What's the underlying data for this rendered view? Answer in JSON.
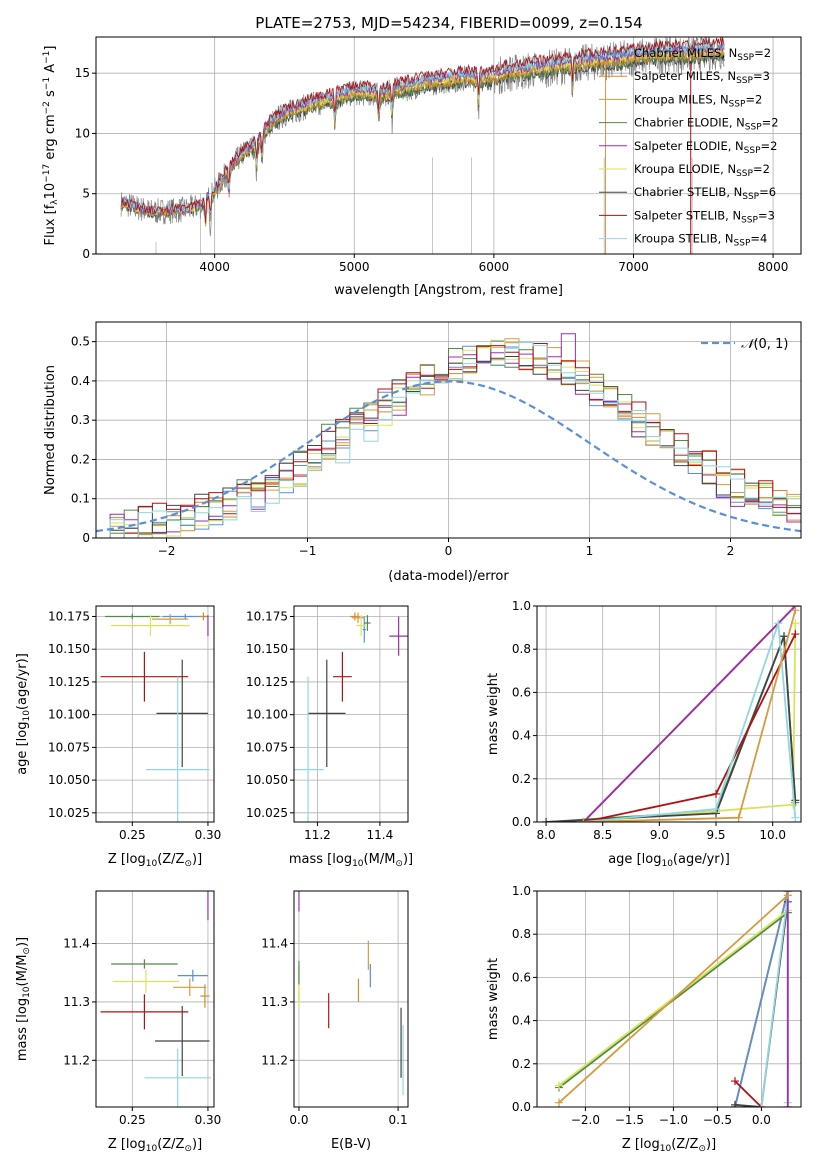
{
  "title": "PLATE=2753, MJD=54234, FIBERID=0099, z=0.154",
  "models": [
    {
      "label": "Chabrier MILES, N",
      "sub": "SSP",
      "suffix": "=2",
      "color": "#5b8fd6"
    },
    {
      "label": "Salpeter MILES, N",
      "sub": "SSP",
      "suffix": "=3",
      "color": "#d58a2c"
    },
    {
      "label": "Kroupa MILES, N",
      "sub": "SSP",
      "suffix": "=2",
      "color": "#d79a3e"
    },
    {
      "label": "Chabrier ELODIE, N",
      "sub": "SSP",
      "suffix": "=2",
      "color": "#4f8c45"
    },
    {
      "label": "Salpeter ELODIE, N",
      "sub": "SSP",
      "suffix": "=2",
      "color": "#9b2fb0"
    },
    {
      "label": "Kroupa ELODIE, N",
      "sub": "SSP",
      "suffix": "=2",
      "color": "#d9e35a"
    },
    {
      "label": "Chabrier STELIB, N",
      "sub": "SSP",
      "suffix": "=6",
      "color": "#444444"
    },
    {
      "label": "Salpeter STELIB, N",
      "sub": "SSP",
      "suffix": "=3",
      "color": "#b01212"
    },
    {
      "label": "Kroupa STELIB, N",
      "sub": "SSP",
      "suffix": "=4",
      "color": "#8fd8e0"
    }
  ],
  "chart_data": [
    {
      "id": "spectrum",
      "type": "line",
      "xlabel": "wavelength [Angstrom, rest frame]",
      "ylabel_parts": [
        "Flux [f",
        "λ",
        "10",
        "−17",
        " erg cm",
        "−2",
        " s",
        "−1",
        " A",
        "−1",
        "]"
      ],
      "xlim": [
        3150,
        8200
      ],
      "ylim": [
        0,
        18
      ],
      "xticks": [
        4000,
        5000,
        6000,
        7000,
        8000
      ],
      "yticks": [
        0,
        5,
        10,
        15
      ],
      "data_color": "#808080",
      "continuum_anchors": {
        "x": [
          3350,
          3450,
          3550,
          3700,
          3800,
          3900,
          4000,
          4100,
          4200,
          4300,
          4400,
          4500,
          4600,
          4700,
          4800,
          4900,
          5000,
          5100,
          5200,
          5300,
          5400,
          5500,
          5600,
          5700,
          5800,
          5900,
          6000,
          6100,
          6200,
          6300,
          6400,
          6500,
          6600,
          6700,
          6800,
          6900,
          7000,
          7100,
          7200,
          7300,
          7400,
          7500,
          7600
        ],
        "y": [
          4.2,
          3.8,
          3.5,
          3.6,
          3.7,
          4.0,
          5.2,
          7.0,
          8.3,
          9.1,
          10.8,
          11.6,
          12.0,
          12.4,
          12.7,
          13.0,
          13.4,
          13.3,
          13.2,
          13.6,
          13.8,
          14.1,
          14.3,
          14.4,
          14.6,
          14.5,
          14.7,
          15.0,
          15.1,
          15.3,
          15.4,
          15.6,
          15.8,
          15.9,
          16.0,
          16.1,
          16.3,
          16.4,
          16.5,
          16.6,
          16.5,
          16.7,
          16.8
        ]
      }
    },
    {
      "id": "residuals",
      "type": "histogram",
      "xlabel": "(data-model)/error",
      "ylabel": "Normed distribution",
      "xlim": [
        -2.5,
        2.5
      ],
      "ylim": [
        0,
        0.55
      ],
      "xticks": [
        -2,
        -1,
        0,
        1,
        2
      ],
      "yticks": [
        0,
        0.1,
        0.2,
        0.3,
        0.4,
        0.5
      ],
      "bin_width": 0.1,
      "reference": {
        "label_main": "𝒩",
        "label_args": "(0, 1)",
        "mean": 0,
        "sigma": 1,
        "color": "#5b8fd6"
      }
    },
    {
      "id": "age_vs_Z",
      "type": "errorbar",
      "xlabel_parts": [
        "Z [log",
        "10",
        "(Z/Z",
        "⊙",
        ")]"
      ],
      "ylabel_parts": [
        "age  [log",
        "10",
        "(age/yr)]"
      ],
      "xlim": [
        0.226,
        0.304
      ],
      "ylim": [
        10.018,
        10.183
      ],
      "xticks": [
        0.25,
        0.3
      ],
      "xtick_labels": [
        "0.25",
        "0.30"
      ],
      "yticks": [
        10.025,
        10.05,
        10.075,
        10.1,
        10.125,
        10.15,
        10.175
      ],
      "ytick_labels": [
        "10.025",
        "10.050",
        "10.075",
        "10.100",
        "10.125",
        "10.150",
        "10.175"
      ],
      "points": [
        {
          "model": 0,
          "x": 0.285,
          "y": 10.175,
          "xerr": 0.015,
          "yerr": 0.002
        },
        {
          "model": 1,
          "x": 0.297,
          "y": 10.175,
          "xerr": 0.003,
          "yerr": 0.003
        },
        {
          "model": 2,
          "x": 0.275,
          "y": 10.173,
          "xerr": 0.012,
          "yerr": 0.004
        },
        {
          "model": 3,
          "x": 0.25,
          "y": 10.175,
          "xerr": 0.018,
          "yerr": 0.002
        },
        {
          "model": 4,
          "x": 0.3,
          "y": 10.168,
          "xerr": 0.0,
          "yerr": 0.008
        },
        {
          "model": 5,
          "x": 0.262,
          "y": 10.168,
          "xerr": 0.026,
          "yerr": 0.008
        },
        {
          "model": 6,
          "x": 0.283,
          "y": 10.101,
          "xerr": 0.017,
          "yerr": 0.041
        },
        {
          "model": 7,
          "x": 0.258,
          "y": 10.129,
          "xerr": 0.029,
          "yerr": 0.019
        },
        {
          "model": 8,
          "x": 0.28,
          "y": 10.058,
          "xerr": 0.021,
          "yerr": 0.071
        }
      ]
    },
    {
      "id": "age_vs_mass",
      "type": "errorbar",
      "xlabel_parts": [
        "mass [log",
        "10",
        "(M/M",
        "⊙",
        ")]"
      ],
      "xlim": [
        11.125,
        11.49
      ],
      "ylim": [
        10.018,
        10.183
      ],
      "xticks": [
        11.2,
        11.4
      ],
      "xtick_labels": [
        "11.2",
        "11.4"
      ],
      "yticks": [
        10.025,
        10.05,
        10.075,
        10.1,
        10.125,
        10.15,
        10.175
      ],
      "ytick_labels": [
        "10.025",
        "10.050",
        "10.075",
        "10.100",
        "10.125",
        "10.150",
        "10.175"
      ],
      "points": [
        {
          "model": 0,
          "x": 11.35,
          "y": 10.165,
          "xerr": 0.005,
          "yerr": 0.01
        },
        {
          "model": 1,
          "x": 11.32,
          "y": 10.175,
          "xerr": 0.015,
          "yerr": 0.003
        },
        {
          "model": 2,
          "x": 11.33,
          "y": 10.174,
          "xerr": 0.02,
          "yerr": 0.004
        },
        {
          "model": 3,
          "x": 11.36,
          "y": 10.17,
          "xerr": 0.01,
          "yerr": 0.006
        },
        {
          "model": 4,
          "x": 11.46,
          "y": 10.16,
          "xerr": 0.03,
          "yerr": 0.015
        },
        {
          "model": 5,
          "x": 11.34,
          "y": 10.168,
          "xerr": 0.015,
          "yerr": 0.008
        },
        {
          "model": 6,
          "x": 11.23,
          "y": 10.101,
          "xerr": 0.06,
          "yerr": 0.041
        },
        {
          "model": 7,
          "x": 11.28,
          "y": 10.129,
          "xerr": 0.03,
          "yerr": 0.019
        },
        {
          "model": 8,
          "x": 11.17,
          "y": 10.058,
          "xerr": 0.05,
          "yerr": 0.071
        }
      ]
    },
    {
      "id": "mw_vs_age",
      "type": "line",
      "xlabel_parts": [
        "age  [log",
        "10",
        "(age/yr)]"
      ],
      "ylabel": "mass weight",
      "xlim": [
        7.92,
        10.25
      ],
      "ylim": [
        0,
        1
      ],
      "xticks": [
        8.0,
        8.5,
        9.0,
        9.5,
        10.0
      ],
      "xtick_labels": [
        "8.0",
        "8.5",
        "9.0",
        "9.5",
        "10.0"
      ],
      "yticks": [
        0,
        0.2,
        0.4,
        0.6,
        0.8,
        1.0
      ],
      "ytick_labels": [
        "0.0",
        "0.2",
        "0.4",
        "0.6",
        "0.8",
        "1.0"
      ],
      "series": [
        {
          "model": 0,
          "x": [
            8.33,
            10.2
          ],
          "y": [
            0.0,
            1.0
          ]
        },
        {
          "model": 1,
          "x": [
            8.33,
            10.2
          ],
          "y": [
            0.0,
            1.0
          ]
        },
        {
          "model": 2,
          "x": [
            8.33,
            10.2
          ],
          "y": [
            0.0,
            1.0
          ]
        },
        {
          "model": 3,
          "x": [
            8.0,
            9.5,
            10.1,
            10.2
          ],
          "y": [
            0.0,
            0.05,
            0.86,
            0.09
          ]
        },
        {
          "model": 4,
          "x": [
            8.33,
            10.2
          ],
          "y": [
            0.0,
            1.0
          ]
        },
        {
          "model": 5,
          "x": [
            8.33,
            10.18,
            10.2
          ],
          "y": [
            0.0,
            0.08,
            0.92
          ]
        },
        {
          "model": 6,
          "x": [
            8.0,
            9.5,
            10.1,
            10.2
          ],
          "y": [
            0.0,
            0.04,
            0.86,
            0.1
          ]
        },
        {
          "model": 7,
          "x": [
            8.33,
            9.5,
            10.2
          ],
          "y": [
            0.0,
            0.13,
            0.87
          ]
        },
        {
          "model": 8,
          "x": [
            8.33,
            9.5,
            10.05,
            10.2
          ],
          "y": [
            0.0,
            0.06,
            0.92,
            0.02
          ]
        },
        {
          "model": 2,
          "x": [
            8.33,
            9.7,
            10.2
          ],
          "y": [
            0.0,
            0.02,
            0.98
          ]
        }
      ]
    },
    {
      "id": "mass_vs_Z",
      "type": "errorbar",
      "xlabel_parts": [
        "Z [log",
        "10",
        "(Z/Z",
        "⊙",
        ")]"
      ],
      "ylabel_parts": [
        "mass [log",
        "10",
        "(M/M",
        "⊙",
        ")]"
      ],
      "xlim": [
        0.226,
        0.304
      ],
      "ylim": [
        11.12,
        11.49
      ],
      "xticks": [
        0.25,
        0.3
      ],
      "xtick_labels": [
        "0.25",
        "0.30"
      ],
      "yticks": [
        11.2,
        11.3,
        11.4
      ],
      "ytick_labels": [
        "11.2",
        "11.3",
        "11.4"
      ],
      "points": [
        {
          "model": 0,
          "x": 0.29,
          "y": 11.345,
          "xerr": 0.01,
          "yerr": 0.01
        },
        {
          "model": 1,
          "x": 0.298,
          "y": 11.31,
          "xerr": 0.003,
          "yerr": 0.02
        },
        {
          "model": 2,
          "x": 0.288,
          "y": 11.325,
          "xerr": 0.011,
          "yerr": 0.015
        },
        {
          "model": 3,
          "x": 0.258,
          "y": 11.365,
          "xerr": 0.022,
          "yerr": 0.008
        },
        {
          "model": 4,
          "x": 0.3,
          "y": 11.47,
          "xerr": 0.0,
          "yerr": 0.03
        },
        {
          "model": 5,
          "x": 0.259,
          "y": 11.335,
          "xerr": 0.022,
          "yerr": 0.02
        },
        {
          "model": 6,
          "x": 0.283,
          "y": 11.233,
          "xerr": 0.018,
          "yerr": 0.06
        },
        {
          "model": 7,
          "x": 0.258,
          "y": 11.283,
          "xerr": 0.029,
          "yerr": 0.03
        },
        {
          "model": 8,
          "x": 0.28,
          "y": 11.17,
          "xerr": 0.022,
          "yerr": 0.05
        }
      ]
    },
    {
      "id": "mass_vs_ebv",
      "type": "errorbar",
      "xlabel": "E(B-V)",
      "xlim": [
        -0.005,
        0.11
      ],
      "ylim": [
        11.12,
        11.49
      ],
      "xticks": [
        0.0,
        0.1
      ],
      "xtick_labels": [
        "0.0",
        "0.1"
      ],
      "yticks": [
        11.2,
        11.3,
        11.4
      ],
      "ytick_labels": [
        "11.2",
        "11.3",
        "11.4"
      ],
      "points": [
        {
          "model": 0,
          "x": 0.072,
          "y": 11.345,
          "xerr": 0.0,
          "yerr": 0.02
        },
        {
          "model": 1,
          "x": 0.06,
          "y": 11.32,
          "xerr": 0.0,
          "yerr": 0.02
        },
        {
          "model": 2,
          "x": 0.0,
          "y": 11.33,
          "xerr": 0.0,
          "yerr": 0.03
        },
        {
          "model": 3,
          "x": 0.0,
          "y": 11.35,
          "xerr": 0.0,
          "yerr": 0.02
        },
        {
          "model": 4,
          "x": 0.0,
          "y": 11.475,
          "xerr": 0.0,
          "yerr": 0.02
        },
        {
          "model": 5,
          "x": 0.0,
          "y": 11.31,
          "xerr": 0.0,
          "yerr": 0.02
        },
        {
          "model": 6,
          "x": 0.103,
          "y": 11.23,
          "xerr": 0.0,
          "yerr": 0.06
        },
        {
          "model": 7,
          "x": 0.03,
          "y": 11.285,
          "xerr": 0.0,
          "yerr": 0.03
        },
        {
          "model": 8,
          "x": 0.105,
          "y": 11.2,
          "xerr": 0.0,
          "yerr": 0.06
        },
        {
          "model": 2,
          "x": 0.07,
          "y": 11.38,
          "xerr": 0.0,
          "yerr": 0.025
        }
      ]
    },
    {
      "id": "mw_vs_Z",
      "type": "line",
      "xlabel_parts": [
        "Z [log",
        "10",
        "(Z/Z",
        "⊙",
        ")]"
      ],
      "ylabel": "mass weight",
      "xlim": [
        -2.55,
        0.45
      ],
      "ylim": [
        0,
        1
      ],
      "xticks": [
        -2.0,
        -1.5,
        -1.0,
        -0.5,
        0.0
      ],
      "xtick_labels": [
        "−2.0",
        "−1.5",
        "−1.0",
        "−0.5",
        "0.0"
      ],
      "yticks": [
        0,
        0.2,
        0.4,
        0.6,
        0.8,
        1.0
      ],
      "ytick_labels": [
        "0.0",
        "0.2",
        "0.4",
        "0.6",
        "0.8",
        "1.0"
      ],
      "series": [
        {
          "model": 1,
          "x": [
            -0.3,
            0.3
          ],
          "y": [
            0.0,
            1.0
          ]
        },
        {
          "model": 2,
          "x": [
            -0.3,
            0.3
          ],
          "y": [
            0.0,
            1.0
          ]
        },
        {
          "model": 0,
          "x": [
            -0.3,
            0.3
          ],
          "y": [
            0.0,
            1.0
          ]
        },
        {
          "model": 3,
          "x": [
            -2.3,
            0.3
          ],
          "y": [
            0.09,
            0.9
          ]
        },
        {
          "model": 5,
          "x": [
            -2.3,
            0.3
          ],
          "y": [
            0.1,
            0.91
          ]
        },
        {
          "model": 6,
          "x": [
            -0.3,
            0.0,
            0.3
          ],
          "y": [
            0.01,
            0.0,
            0.95
          ]
        },
        {
          "model": 7,
          "x": [
            -0.3,
            0.0
          ],
          "y": [
            0.12,
            0.0
          ]
        },
        {
          "model": 8,
          "x": [
            0.0,
            0.3,
            0.3
          ],
          "y": [
            0.0,
            0.98,
            0.02
          ]
        },
        {
          "model": 4,
          "x": [
            0.3,
            0.3
          ],
          "y": [
            0.0,
            1.0
          ]
        },
        {
          "model": 2,
          "x": [
            -2.3,
            0.3
          ],
          "y": [
            0.02,
            0.98
          ]
        }
      ]
    }
  ]
}
